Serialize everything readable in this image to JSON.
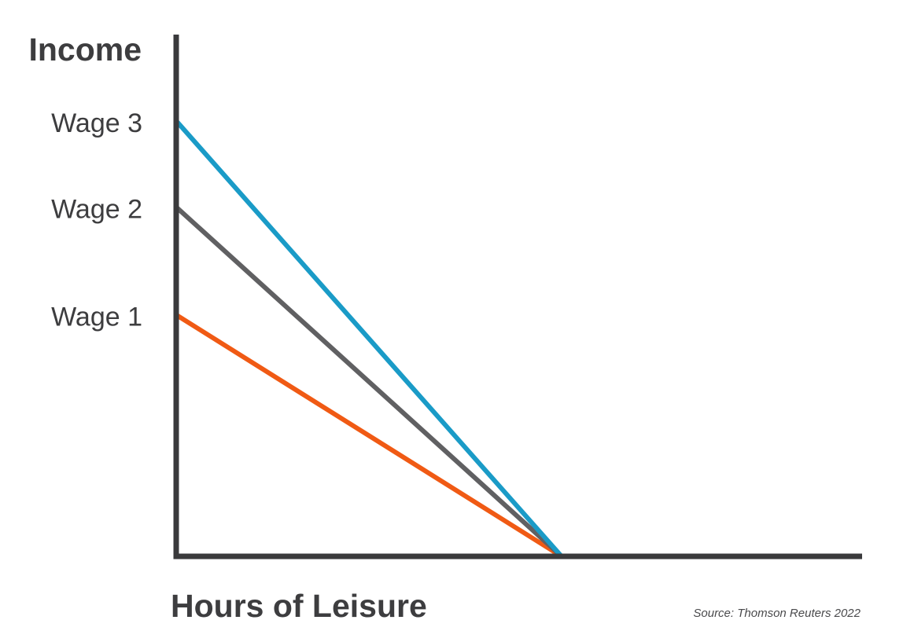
{
  "chart_data": {
    "type": "line",
    "title": "",
    "ylabel": "Income",
    "xlabel": "Hours of Leisure",
    "source": "Source: Thomson Reuters 2022",
    "yticks": [
      "Wage 1",
      "Wage 2",
      "Wage 3"
    ],
    "xlim": [
      0,
      1.78
    ],
    "ylim": [
      0,
      1.21
    ],
    "grid": false,
    "legend": "none",
    "axis_color": "#3a3a3c",
    "series": [
      {
        "label": "Wage 1",
        "color": "#f05a14",
        "x": [
          0,
          1
        ],
        "y": [
          0.56,
          0
        ]
      },
      {
        "label": "Wage 2",
        "color": "#606062",
        "x": [
          0,
          1
        ],
        "y": [
          0.81,
          0
        ]
      },
      {
        "label": "Wage 3",
        "color": "#1a9bc7",
        "x": [
          0,
          1
        ],
        "y": [
          1.01,
          0
        ]
      }
    ]
  }
}
